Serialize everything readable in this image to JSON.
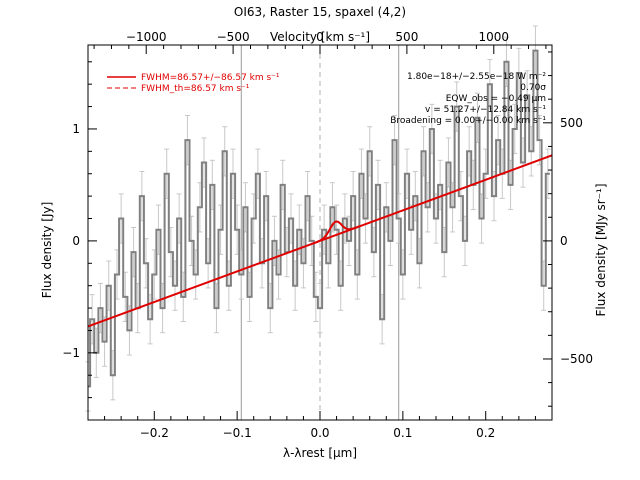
{
  "chart_data": {
    "type": "line",
    "title": "OI63, Raster 15, spaxel (4,2)",
    "xlabel": "λ-λrest [μm]",
    "ylabel": "Flux density [Jy]",
    "top_xlabel": "Velocity [km s⁻¹]",
    "right_ylabel": "Flux density [MJy sr⁻¹]",
    "xlim": [
      -0.28,
      0.28
    ],
    "ylim": [
      -1.6,
      1.75
    ],
    "x_ticks": [
      -0.2,
      -0.1,
      0.0,
      0.1,
      0.2
    ],
    "x_tick_labels": [
      "−0.2",
      "−0.1",
      "0.0",
      "0.1",
      "0.2"
    ],
    "y_ticks": [
      -1,
      0,
      1
    ],
    "y_tick_labels": [
      "−1",
      "0",
      "1"
    ],
    "top_ticks": [
      -1000,
      -500,
      0,
      500,
      1000
    ],
    "top_tick_labels": [
      "−1000",
      "−500",
      "0",
      "500",
      "1000"
    ],
    "right_ticks": [
      -500,
      0,
      500
    ],
    "right_tick_labels": [
      "−500",
      "0",
      "500"
    ],
    "velocity_per_um": 4768,
    "mjysr_per_jy": 474,
    "vertical_lines": {
      "solid": [
        -0.095,
        0.095
      ],
      "dashed": [
        0.0
      ]
    },
    "legend": [
      {
        "label": "FWHM=86.57+/−86.57 km s⁻¹",
        "style": "solid",
        "color": "#e00000"
      },
      {
        "label": "FWHM_th=86.57 km s⁻¹",
        "style": "dashed",
        "color": "#e00000"
      }
    ],
    "annotations": [
      "1.80e−18+/−2.55e−18 W m⁻²",
      "0.70σ",
      "EQW_obs = −0.49 μm",
      "v = 51.27+/−12.84 km s⁻¹",
      "Broadening = 0.00+/−0.00 km s⁻¹"
    ],
    "continuum": {
      "slope": 2.73,
      "intercept": 0.0
    },
    "gaussian": {
      "center": 0.019,
      "amplitude": 0.12,
      "sigma": 0.007
    },
    "series": [
      {
        "style": "steps",
        "color": "#808080",
        "x": [
          -0.28,
          -0.275,
          -0.27,
          -0.265,
          -0.26,
          -0.255,
          -0.25,
          -0.245,
          -0.24,
          -0.235,
          -0.23,
          -0.225,
          -0.22,
          -0.215,
          -0.21,
          -0.205,
          -0.2,
          -0.195,
          -0.19,
          -0.185,
          -0.18,
          -0.175,
          -0.17,
          -0.165,
          -0.16,
          -0.155,
          -0.15,
          -0.145,
          -0.14,
          -0.135,
          -0.13,
          -0.125,
          -0.12,
          -0.115,
          -0.11,
          -0.105,
          -0.1,
          -0.095,
          -0.09,
          -0.085,
          -0.08,
          -0.075,
          -0.07,
          -0.065,
          -0.06,
          -0.055,
          -0.05,
          -0.045,
          -0.04,
          -0.035,
          -0.03,
          -0.025,
          -0.02,
          -0.015,
          -0.01,
          -0.005,
          0.0,
          0.005,
          0.01,
          0.015,
          0.02,
          0.025,
          0.03,
          0.035,
          0.04,
          0.045,
          0.05,
          0.055,
          0.06,
          0.065,
          0.07,
          0.075,
          0.08,
          0.085,
          0.09,
          0.095,
          0.1,
          0.105,
          0.11,
          0.115,
          0.12,
          0.125,
          0.13,
          0.135,
          0.14,
          0.145,
          0.15,
          0.155,
          0.16,
          0.165,
          0.17,
          0.175,
          0.18,
          0.185,
          0.19,
          0.195,
          0.2,
          0.205,
          0.21,
          0.215,
          0.22,
          0.225,
          0.23,
          0.235,
          0.24,
          0.245,
          0.25,
          0.255,
          0.26,
          0.265,
          0.27,
          0.275
        ],
        "y": [
          -1.3,
          -0.7,
          -1.0,
          -0.6,
          -0.9,
          -0.4,
          -1.2,
          -0.3,
          0.2,
          -0.5,
          -0.8,
          -0.1,
          -0.6,
          0.4,
          -0.2,
          -0.7,
          -0.3,
          0.1,
          -0.6,
          0.6,
          -0.1,
          -0.4,
          0.2,
          -0.5,
          0.9,
          0.0,
          -0.3,
          0.3,
          0.7,
          -0.2,
          0.5,
          -0.6,
          0.1,
          0.8,
          -0.4,
          0.6,
          0.1,
          -0.3,
          0.3,
          -0.5,
          0.2,
          0.6,
          -0.2,
          0.4,
          -0.6,
          0.0,
          -0.3,
          0.5,
          -0.1,
          0.2,
          -0.4,
          0.1,
          -0.2,
          0.4,
          0.0,
          -0.5,
          -0.6,
          0.1,
          -0.2,
          0.3,
          0.1,
          -0.4,
          0.2,
          0.0,
          0.4,
          -0.3,
          0.6,
          0.2,
          0.8,
          -0.1,
          0.5,
          -0.7,
          0.3,
          0.0,
          0.9,
          0.2,
          -0.3,
          0.6,
          0.1,
          0.4,
          -0.2,
          0.8,
          0.3,
          1.0,
          0.2,
          0.5,
          -0.1,
          0.7,
          0.3,
          1.2,
          0.4,
          0.0,
          0.8,
          0.5,
          1.1,
          0.2,
          0.6,
          1.4,
          0.4,
          0.9,
          0.6,
          1.6,
          0.5,
          1.0,
          1.5,
          0.7,
          1.3,
          0.8,
          1.7,
          0.9,
          -0.4,
          0.6
        ],
        "err": 0.22
      }
    ]
  }
}
